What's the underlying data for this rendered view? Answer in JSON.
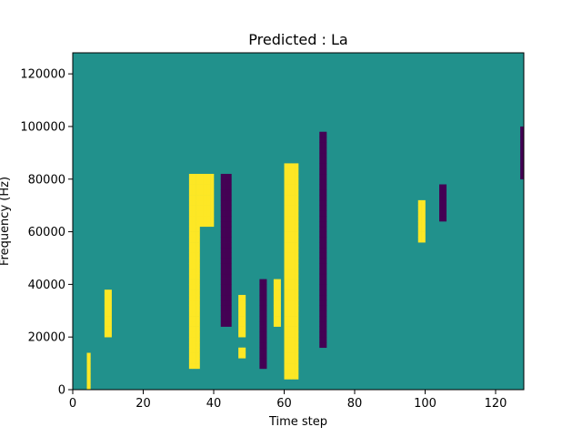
{
  "chart_data": {
    "type": "heatmap",
    "title": "Predicted : La",
    "xlabel": "Time step",
    "ylabel": "Frequency (Hz)",
    "xlim": [
      0,
      128
    ],
    "ylim": [
      0,
      128000
    ],
    "x_ticks": [
      0,
      20,
      40,
      60,
      80,
      100,
      120
    ],
    "y_ticks": [
      0,
      20000,
      40000,
      60000,
      80000,
      100000,
      120000
    ],
    "x_tick_labels": [
      "0",
      "20",
      "40",
      "60",
      "80",
      "100",
      "120"
    ],
    "y_tick_labels": [
      "0",
      "20000",
      "40000",
      "60000",
      "80000",
      "100000",
      "120000"
    ],
    "n_time_steps": 128,
    "n_freq_bins": 64,
    "freq_bin_hz": 2000,
    "colormap": {
      "low": "#440154",
      "mid": "#21918c",
      "high": "#fde725"
    },
    "background_value": "mid",
    "high_cells": [
      {
        "t": [
          60,
          61,
          62,
          63
        ],
        "f_bins": [
          2,
          3,
          4,
          5,
          6,
          7,
          8,
          9,
          10,
          11,
          12,
          13,
          14,
          15,
          16,
          17,
          18,
          19,
          20,
          21,
          22,
          23,
          24,
          25,
          26,
          27,
          28,
          29,
          30,
          31,
          32,
          33,
          34,
          35,
          36,
          37,
          38,
          39,
          40,
          41,
          42
        ]
      },
      {
        "t": [
          33,
          34,
          35
        ],
        "f_bins": [
          4,
          5,
          6,
          7,
          8,
          9,
          10,
          11,
          12,
          13,
          14,
          15,
          16,
          17,
          18,
          19,
          20,
          21,
          22,
          23,
          24,
          25,
          26,
          27,
          28,
          29,
          30,
          31,
          32,
          33,
          34,
          35,
          36,
          37,
          38,
          39,
          40
        ]
      },
      {
        "t": [
          36,
          37,
          38,
          39
        ],
        "f_bins": [
          31,
          32,
          33,
          34,
          35,
          36,
          37,
          38,
          39,
          40
        ]
      },
      {
        "t": [
          47,
          48
        ],
        "f_bins": [
          6,
          7,
          10,
          11,
          12,
          13,
          14,
          15,
          16,
          17
        ]
      },
      {
        "t": [
          9,
          10
        ],
        "f_bins": [
          10,
          11,
          12,
          13,
          14,
          15,
          16,
          17,
          18
        ]
      },
      {
        "t": [
          98,
          99
        ],
        "f_bins": [
          28,
          29,
          30,
          31,
          32,
          33,
          34,
          35
        ]
      },
      {
        "t": [
          57,
          58
        ],
        "f_bins": [
          12,
          13,
          14,
          15,
          16,
          17,
          18,
          19,
          20
        ]
      },
      {
        "t": [
          4
        ],
        "f_bins": [
          0,
          1,
          2,
          3,
          4,
          5,
          6
        ]
      }
    ],
    "low_cells": [
      {
        "t": [
          70,
          71
        ],
        "f_bins": [
          8,
          9,
          10,
          11,
          12,
          13,
          14,
          15,
          16,
          17,
          18,
          19,
          20,
          21,
          22,
          23,
          24,
          25,
          26,
          27,
          28,
          29,
          30,
          31,
          32,
          33,
          34,
          35,
          36,
          37,
          38,
          39,
          40,
          41,
          42,
          43,
          44,
          45,
          46,
          47,
          48
        ]
      },
      {
        "t": [
          42,
          43,
          44
        ],
        "f_bins": [
          12,
          13,
          14,
          15,
          16,
          17,
          18,
          19,
          20,
          21,
          22,
          23,
          24,
          25,
          26,
          27,
          28,
          29,
          30,
          31,
          32,
          33,
          34,
          35,
          36,
          37,
          38,
          39,
          40
        ]
      },
      {
        "t": [
          53,
          54
        ],
        "f_bins": [
          4,
          5,
          6,
          7,
          8,
          9,
          10,
          11,
          12,
          13,
          14,
          15,
          16,
          17,
          18,
          19,
          20
        ]
      },
      {
        "t": [
          104,
          105
        ],
        "f_bins": [
          32,
          33,
          34,
          35,
          36,
          37,
          38
        ]
      },
      {
        "t": [
          127
        ],
        "f_bins": [
          40,
          41,
          42,
          43,
          44,
          45,
          46,
          47,
          48,
          49
        ]
      }
    ]
  }
}
